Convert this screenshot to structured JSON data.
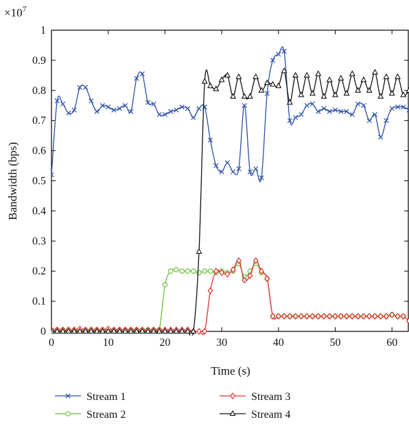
{
  "chart_data": {
    "type": "line",
    "xlabel": "Time (s)",
    "ylabel": "Bandwidth (bps)",
    "exponent_label": "×10",
    "exponent_power": "7",
    "xlim": [
      0,
      63
    ],
    "ylim": [
      0,
      1
    ],
    "xticks": [
      0,
      10,
      20,
      30,
      40,
      50,
      60
    ],
    "yticks": [
      0,
      0.1,
      0.2,
      0.3,
      0.4,
      0.5,
      0.6,
      0.7,
      0.8,
      0.9,
      1
    ],
    "ytick_labels": [
      "0",
      "0.1",
      "0.2",
      "0.3",
      "0.4",
      "0.5",
      "0.6",
      "0.7",
      "0.8",
      "0.9",
      "1"
    ],
    "grid": false,
    "legend_position": "bottom",
    "series": [
      {
        "name": "Stream 1",
        "color": "#2b4fa8",
        "marker": "x",
        "x": [
          0,
          1,
          2,
          3,
          4,
          5,
          6,
          7,
          8,
          9,
          10,
          11,
          12,
          13,
          14,
          15,
          16,
          17,
          18,
          19,
          20,
          21,
          22,
          23,
          24,
          25,
          26,
          27,
          28,
          29,
          30,
          31,
          32,
          33,
          34,
          35,
          36,
          37,
          38,
          39,
          40,
          41,
          42,
          43,
          44,
          45,
          46,
          47,
          48,
          49,
          50,
          51,
          52,
          53,
          54,
          55,
          56,
          57,
          58,
          59,
          60,
          61,
          62,
          63
        ],
        "y": [
          0.52,
          0.765,
          0.755,
          0.725,
          0.735,
          0.81,
          0.81,
          0.765,
          0.73,
          0.75,
          0.745,
          0.735,
          0.74,
          0.75,
          0.73,
          0.84,
          0.855,
          0.76,
          0.755,
          0.72,
          0.72,
          0.73,
          0.735,
          0.745,
          0.74,
          0.71,
          0.74,
          0.745,
          0.635,
          0.55,
          0.53,
          0.56,
          0.53,
          0.54,
          0.75,
          0.53,
          0.54,
          0.51,
          0.79,
          0.9,
          0.92,
          0.93,
          0.7,
          0.71,
          0.72,
          0.75,
          0.755,
          0.73,
          0.74,
          0.73,
          0.735,
          0.73,
          0.73,
          0.72,
          0.755,
          0.75,
          0.7,
          0.72,
          0.645,
          0.7,
          0.74,
          0.745,
          0.745,
          0.735
        ]
      },
      {
        "name": "Stream 2",
        "color": "#6abf3c",
        "marker": "o",
        "x": [
          0,
          1,
          2,
          3,
          4,
          5,
          6,
          7,
          8,
          9,
          10,
          11,
          12,
          13,
          14,
          15,
          16,
          17,
          18,
          19,
          20,
          21,
          22,
          23,
          24,
          25,
          26,
          27,
          28,
          29,
          30,
          31,
          32,
          33,
          34,
          35,
          36,
          37,
          38,
          39,
          40,
          41,
          42,
          43,
          44,
          45,
          46,
          47,
          48,
          49,
          50,
          51,
          52,
          53,
          54,
          55,
          56,
          57,
          58,
          59,
          60,
          61,
          62,
          63
        ],
        "y": [
          0.005,
          0.005,
          0.005,
          0.005,
          0.005,
          0.005,
          0.005,
          0.005,
          0.005,
          0.005,
          0.005,
          0.005,
          0.005,
          0.005,
          0.005,
          0.005,
          0.005,
          0.005,
          0.005,
          0.005,
          0.155,
          0.2,
          0.205,
          0.2,
          0.2,
          0.2,
          0.195,
          0.2,
          0.2,
          0.195,
          0.2,
          0.195,
          0.2,
          0.225,
          0.18,
          0.2,
          0.225,
          0.195,
          0.175,
          0.05,
          0.05,
          0.05,
          0.05,
          0.05,
          0.05,
          0.05,
          0.05,
          0.05,
          0.05,
          0.05,
          0.05,
          0.05,
          0.05,
          0.05,
          0.05,
          0.05,
          0.05,
          0.05,
          0.05,
          0.05,
          0.055,
          0.05,
          0.05,
          0.035
        ]
      },
      {
        "name": "Stream 3",
        "color": "#e03030",
        "marker": "d",
        "x": [
          0,
          1,
          2,
          3,
          4,
          5,
          6,
          7,
          8,
          9,
          10,
          11,
          12,
          13,
          14,
          15,
          16,
          17,
          18,
          19,
          20,
          21,
          22,
          23,
          24,
          25,
          26,
          27,
          28,
          29,
          30,
          31,
          32,
          33,
          34,
          35,
          36,
          37,
          38,
          39,
          40,
          41,
          42,
          43,
          44,
          45,
          46,
          47,
          48,
          49,
          50,
          51,
          52,
          53,
          54,
          55,
          56,
          57,
          58,
          59,
          60,
          61,
          62,
          63
        ],
        "y": [
          0.005,
          0.005,
          0.005,
          0.005,
          0.005,
          0.008,
          0.005,
          0.005,
          0.005,
          0.005,
          0.008,
          0.005,
          0.005,
          0.005,
          0.005,
          0.005,
          0.005,
          0.005,
          0.005,
          0.005,
          0.005,
          0.005,
          0.005,
          0.005,
          0.005,
          0.0,
          0.0,
          0.0,
          0.135,
          0.2,
          0.195,
          0.19,
          0.205,
          0.235,
          0.17,
          0.185,
          0.235,
          0.2,
          0.175,
          0.05,
          0.05,
          0.05,
          0.05,
          0.05,
          0.05,
          0.05,
          0.05,
          0.05,
          0.05,
          0.05,
          0.05,
          0.05,
          0.05,
          0.05,
          0.05,
          0.05,
          0.05,
          0.05,
          0.05,
          0.05,
          0.055,
          0.05,
          0.05,
          0.035
        ]
      },
      {
        "name": "Stream 4",
        "color": "#111111",
        "marker": "^",
        "x": [
          0,
          1,
          2,
          3,
          4,
          5,
          6,
          7,
          8,
          9,
          10,
          11,
          12,
          13,
          14,
          15,
          16,
          17,
          18,
          19,
          20,
          21,
          22,
          23,
          24,
          25,
          26,
          27,
          28,
          29,
          30,
          31,
          32,
          33,
          34,
          35,
          36,
          37,
          38,
          39,
          40,
          41,
          42,
          43,
          44,
          45,
          46,
          47,
          48,
          49,
          50,
          51,
          52,
          53,
          54,
          55,
          56,
          57,
          58,
          59,
          60,
          61,
          62,
          63
        ],
        "y": [
          0.0,
          0.0,
          0.0,
          0.0,
          0.0,
          0.0,
          0.0,
          0.0,
          0.0,
          0.0,
          0.0,
          0.0,
          0.0,
          0.0,
          0.0,
          0.0,
          0.0,
          0.0,
          0.0,
          0.0,
          0.0,
          0.0,
          0.0,
          0.0,
          0.0,
          0.0,
          0.265,
          0.83,
          0.815,
          0.805,
          0.835,
          0.85,
          0.78,
          0.845,
          0.78,
          0.78,
          0.845,
          0.8,
          0.825,
          0.82,
          0.815,
          0.865,
          0.76,
          0.85,
          0.785,
          0.85,
          0.79,
          0.855,
          0.78,
          0.835,
          0.785,
          0.84,
          0.79,
          0.855,
          0.8,
          0.835,
          0.8,
          0.86,
          0.78,
          0.845,
          0.79,
          0.845,
          0.785,
          0.8
        ]
      }
    ]
  }
}
